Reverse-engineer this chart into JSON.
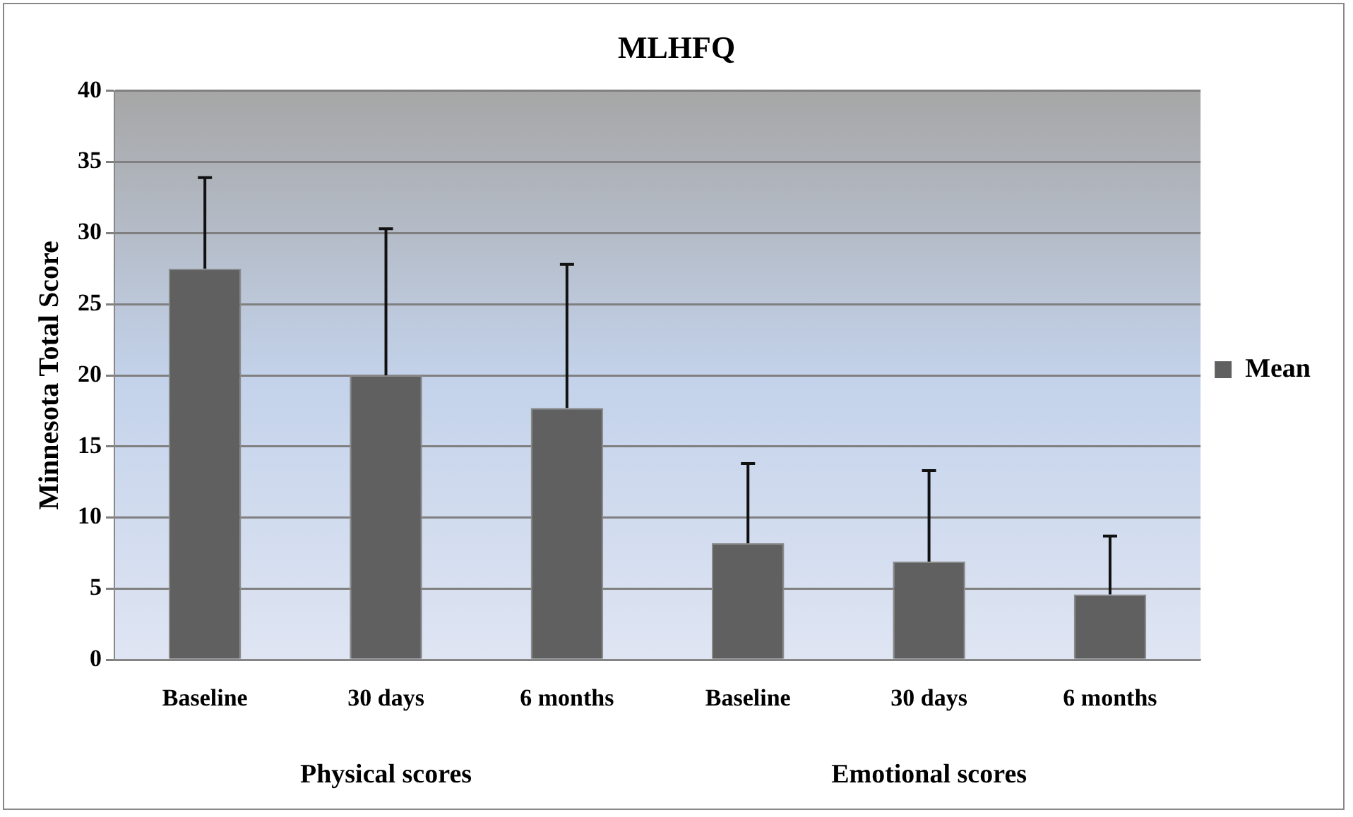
{
  "chart_data": {
    "type": "bar",
    "title": "MLHFQ",
    "ylabel": "Minnesota Total Score",
    "categories": [
      "Baseline",
      "30 days",
      "6 months",
      "Baseline",
      "30 days",
      "6 months"
    ],
    "series": [
      {
        "name": "Mean",
        "color": "#606060",
        "values": [
          27.5,
          20.0,
          17.7,
          8.2,
          6.9,
          4.6
        ],
        "errors": [
          [
            27.5,
            33.9
          ],
          [
            20.0,
            30.3
          ],
          [
            17.7,
            27.8
          ],
          [
            8.2,
            13.8
          ],
          [
            6.9,
            13.3
          ],
          [
            4.6,
            8.7
          ]
        ]
      }
    ],
    "annotations": [
      "Physical scores",
      "Emotional scores"
    ],
    "ylim": [
      0,
      40
    ],
    "yticks": [
      0,
      5,
      10,
      15,
      20,
      25,
      30,
      35,
      40
    ],
    "grid": "y",
    "legend": "right"
  }
}
